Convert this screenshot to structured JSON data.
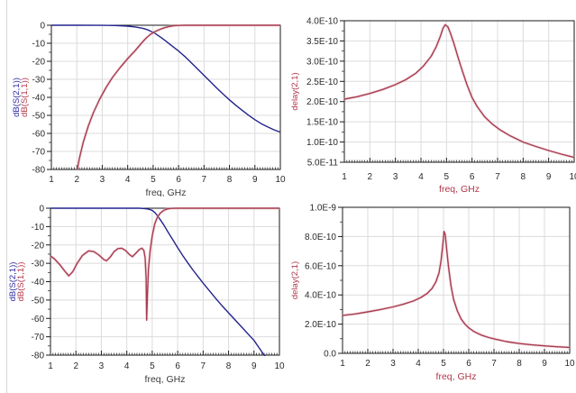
{
  "page": {
    "background": "#ffffff",
    "grid_color": "#dbdbdb",
    "axis_color": "#1a1a1a",
    "tick_text_color": "#2a2a2a"
  },
  "chart_data": [
    {
      "id": "sparams-butterworth-lowpass",
      "type": "line",
      "title": "",
      "xlabel": "freq, GHz",
      "xlabel_color": "#3a3a3a",
      "ylabel_lines": [
        {
          "text": "dB(S(2,1))",
          "color": "#2b2b9e",
          "slug": "ylabel-db-s21"
        },
        {
          "text": "dB(S(1,1))",
          "color": "#b23648",
          "slug": "ylabel-db-s11"
        }
      ],
      "xlim": [
        1,
        10
      ],
      "ylim": [
        -80,
        0
      ],
      "xticks": [
        1,
        2,
        3,
        4,
        5,
        6,
        7,
        8,
        9,
        10
      ],
      "xtick_labels": [
        "1",
        "2",
        "3",
        "4",
        "5",
        "6",
        "7",
        "8",
        "9",
        "10"
      ],
      "yticks": [
        0,
        -10,
        -20,
        -30,
        -40,
        -50,
        -60,
        -70,
        -80
      ],
      "ytick_labels": [
        "0",
        "-10",
        "-20",
        "-30",
        "-40",
        "-50",
        "-60",
        "-70",
        "-80"
      ],
      "x_minor_step": 0.1,
      "grid": true,
      "legend_position": "none",
      "series": [
        {
          "name": "dB(S(2,1))",
          "slug": "trace-db-s21",
          "color": "#23238e",
          "points": [
            [
              1,
              0
            ],
            [
              2,
              0
            ],
            [
              3,
              -0.05
            ],
            [
              3.5,
              -0.15
            ],
            [
              4,
              -0.5
            ],
            [
              4.3,
              -0.95
            ],
            [
              4.6,
              -1.7
            ],
            [
              4.8,
              -2.6
            ],
            [
              4.95,
              -3.6
            ],
            [
              5.05,
              -4.3
            ],
            [
              5.3,
              -6.7
            ],
            [
              5.5,
              -8.8
            ],
            [
              5.75,
              -11.6
            ],
            [
              6,
              -14.3
            ],
            [
              6.25,
              -17.4
            ],
            [
              6.5,
              -20.8
            ],
            [
              6.75,
              -24.3
            ],
            [
              7,
              -27.8
            ],
            [
              7.25,
              -31.3
            ],
            [
              7.5,
              -34.8
            ],
            [
              7.75,
              -38.2
            ],
            [
              8,
              -41.4
            ],
            [
              8.25,
              -44.4
            ],
            [
              8.5,
              -47.2
            ],
            [
              8.75,
              -49.9
            ],
            [
              9,
              -52.4
            ],
            [
              9.25,
              -54.6
            ],
            [
              9.5,
              -56.4
            ],
            [
              9.75,
              -58
            ],
            [
              10,
              -59.3
            ]
          ]
        },
        {
          "name": "dB(S(1,1))",
          "slug": "trace-db-s11",
          "color": "#a63c50",
          "halo": "#e9b7c0",
          "points": [
            [
              2.02,
              -80
            ],
            [
              2.1,
              -74
            ],
            [
              2.25,
              -65
            ],
            [
              2.45,
              -56
            ],
            [
              2.65,
              -48.5
            ],
            [
              2.9,
              -41
            ],
            [
              3.15,
              -34.5
            ],
            [
              3.4,
              -29
            ],
            [
              3.7,
              -23.5
            ],
            [
              4.0,
              -18.5
            ],
            [
              4.3,
              -14
            ],
            [
              4.6,
              -9
            ],
            [
              4.75,
              -6.8
            ],
            [
              4.9,
              -5
            ],
            [
              5.05,
              -3.7
            ],
            [
              5.2,
              -2.7
            ],
            [
              5.4,
              -1.6
            ],
            [
              5.6,
              -0.8
            ],
            [
              5.8,
              -0.3
            ],
            [
              6.0,
              -0.1
            ],
            [
              6.3,
              0
            ],
            [
              10,
              0
            ]
          ]
        }
      ]
    },
    {
      "id": "group-delay-butterworth",
      "type": "line",
      "title": "",
      "xlabel": "freq, GHz",
      "xlabel_color": "#b23648",
      "ylabel_lines": [
        {
          "text": "delay(2,1)",
          "color": "#b23648",
          "slug": "ylabel-delay21"
        }
      ],
      "xlim": [
        1,
        10
      ],
      "ylim": [
        5e-11,
        4e-10
      ],
      "xticks": [
        1,
        2,
        3,
        4,
        5,
        6,
        7,
        8,
        9,
        10
      ],
      "xtick_labels": [
        "1",
        "2",
        "3",
        "4",
        "5",
        "6",
        "7",
        "8",
        "9",
        "10"
      ],
      "yticks": [
        4e-10,
        3.5e-10,
        3e-10,
        2.5e-10,
        2e-10,
        1.5e-10,
        1e-10,
        5e-11
      ],
      "ytick_labels": [
        "4.0E-10",
        "3.5E-10",
        "3.0E-10",
        "2.5E-10",
        "2.0E-10",
        "1.5E-10",
        "1.0E-10",
        "5.0E-11"
      ],
      "x_minor_step": 0.1,
      "grid": true,
      "legend_position": "none",
      "series": [
        {
          "name": "delay(2,1)",
          "slug": "trace-delay21",
          "color": "#a63c50",
          "halo": "#e9b7c0",
          "points": [
            [
              1,
              2.06e-10
            ],
            [
              1.5,
              2.12e-10
            ],
            [
              2,
              2.2e-10
            ],
            [
              2.5,
              2.3e-10
            ],
            [
              3,
              2.42e-10
            ],
            [
              3.4,
              2.54e-10
            ],
            [
              3.8,
              2.7e-10
            ],
            [
              4.1,
              2.88e-10
            ],
            [
              4.4,
              3.12e-10
            ],
            [
              4.6,
              3.36e-10
            ],
            [
              4.75,
              3.6e-10
            ],
            [
              4.87,
              3.82e-10
            ],
            [
              4.95,
              3.9e-10
            ],
            [
              5.05,
              3.85e-10
            ],
            [
              5.15,
              3.7e-10
            ],
            [
              5.3,
              3.42e-10
            ],
            [
              5.45,
              3.1e-10
            ],
            [
              5.6,
              2.8e-10
            ],
            [
              5.8,
              2.42e-10
            ],
            [
              6.0,
              2.1e-10
            ],
            [
              6.2,
              1.88e-10
            ],
            [
              6.5,
              1.62e-10
            ],
            [
              6.8,
              1.44e-10
            ],
            [
              7.1,
              1.3e-10
            ],
            [
              7.5,
              1.15e-10
            ],
            [
              8.0,
              1e-10
            ],
            [
              8.5,
              8.9e-11
            ],
            [
              9.0,
              7.9e-11
            ],
            [
              9.5,
              7e-11
            ],
            [
              10,
              6.2e-11
            ]
          ]
        }
      ]
    },
    {
      "id": "sparams-elliptic-lowpass",
      "type": "line",
      "title": "",
      "xlabel": "freq, GHz",
      "xlabel_color": "#3a3a3a",
      "ylabel_lines": [
        {
          "text": "dB(S(2,1))",
          "color": "#2b2b9e",
          "slug": "ylabel-db-s21"
        },
        {
          "text": "dB(S(1,1))",
          "color": "#b23648",
          "slug": "ylabel-db-s11"
        }
      ],
      "xlim": [
        1,
        10
      ],
      "ylim": [
        -80,
        0
      ],
      "xticks": [
        1,
        2,
        3,
        4,
        5,
        6,
        7,
        8,
        9,
        10
      ],
      "xtick_labels": [
        "1",
        "2",
        "3",
        "4",
        "5",
        "6",
        "7",
        "8",
        "9",
        "10"
      ],
      "yticks": [
        0,
        -10,
        -20,
        -30,
        -40,
        -50,
        -60,
        -70,
        -80
      ],
      "ytick_labels": [
        "0",
        "-10",
        "-20",
        "-30",
        "-40",
        "-50",
        "-60",
        "-70",
        "-80"
      ],
      "x_minor_step": 0.1,
      "grid": true,
      "legend_position": "none",
      "series": [
        {
          "name": "dB(S(2,1))",
          "slug": "trace-db-s21",
          "color": "#23238e",
          "points": [
            [
              1,
              0
            ],
            [
              4.5,
              0
            ],
            [
              4.7,
              -0.2
            ],
            [
              4.85,
              -0.5
            ],
            [
              5.0,
              -1.2
            ],
            [
              5.1,
              -2.3
            ],
            [
              5.2,
              -4
            ],
            [
              5.3,
              -6
            ],
            [
              5.45,
              -9
            ],
            [
              5.6,
              -12.5
            ],
            [
              5.8,
              -17
            ],
            [
              6.0,
              -21.5
            ],
            [
              6.2,
              -25.8
            ],
            [
              6.4,
              -29.8
            ],
            [
              6.6,
              -33.6
            ],
            [
              6.8,
              -37.2
            ],
            [
              7.0,
              -40.8
            ],
            [
              7.25,
              -45
            ],
            [
              7.5,
              -49.2
            ],
            [
              7.75,
              -53.2
            ],
            [
              8.0,
              -57
            ],
            [
              8.5,
              -64.5
            ],
            [
              9.0,
              -72
            ],
            [
              9.3,
              -78
            ],
            [
              9.45,
              -81
            ]
          ]
        },
        {
          "name": "dB(S(1,1))",
          "slug": "trace-db-s11",
          "color": "#a63c50",
          "halo": "#e9b7c0",
          "points": [
            [
              1,
              -26
            ],
            [
              1.15,
              -27.5
            ],
            [
              1.35,
              -30.5
            ],
            [
              1.55,
              -34
            ],
            [
              1.72,
              -36.8
            ],
            [
              1.88,
              -34.5
            ],
            [
              2.05,
              -30
            ],
            [
              2.25,
              -25.8
            ],
            [
              2.5,
              -23.2
            ],
            [
              2.7,
              -23.6
            ],
            [
              2.9,
              -25.4
            ],
            [
              3.1,
              -28
            ],
            [
              3.2,
              -28.6
            ],
            [
              3.35,
              -26.6
            ],
            [
              3.5,
              -23.6
            ],
            [
              3.65,
              -22
            ],
            [
              3.8,
              -21.8
            ],
            [
              3.95,
              -23
            ],
            [
              4.1,
              -25.2
            ],
            [
              4.22,
              -26.4
            ],
            [
              4.35,
              -24.6
            ],
            [
              4.5,
              -22.4
            ],
            [
              4.6,
              -21.8
            ],
            [
              4.67,
              -23
            ],
            [
              4.72,
              -27
            ],
            [
              4.76,
              -38
            ],
            [
              4.78,
              -61
            ],
            [
              4.81,
              -48
            ],
            [
              4.85,
              -33
            ],
            [
              4.92,
              -23
            ],
            [
              5.0,
              -15
            ],
            [
              5.1,
              -8.5
            ],
            [
              5.2,
              -5
            ],
            [
              5.32,
              -2.6
            ],
            [
              5.45,
              -1.2
            ],
            [
              5.6,
              -0.4
            ],
            [
              5.75,
              -0.1
            ],
            [
              5.95,
              0
            ],
            [
              10,
              0
            ]
          ]
        }
      ]
    },
    {
      "id": "group-delay-elliptic",
      "type": "line",
      "title": "",
      "xlabel": "freq, GHz",
      "xlabel_color": "#b23648",
      "ylabel_lines": [
        {
          "text": "delay(2,1)",
          "color": "#b23648",
          "slug": "ylabel-delay21"
        }
      ],
      "xlim": [
        1,
        10
      ],
      "ylim": [
        0,
        1e-09
      ],
      "xticks": [
        1,
        2,
        3,
        4,
        5,
        6,
        7,
        8,
        9,
        10
      ],
      "xtick_labels": [
        "1",
        "2",
        "3",
        "4",
        "5",
        "6",
        "7",
        "8",
        "9",
        "10"
      ],
      "yticks": [
        1e-09,
        8e-10,
        6e-10,
        4e-10,
        2e-10,
        0
      ],
      "ytick_labels": [
        "1.0E-9",
        "8.0E-10",
        "6.0E-10",
        "4.0E-10",
        "2.0E-10",
        "0.0"
      ],
      "x_minor_step": 0.1,
      "grid": true,
      "legend_position": "none",
      "series": [
        {
          "name": "delay(2,1)",
          "slug": "trace-delay21",
          "color": "#a63c50",
          "halo": "#e9b7c0",
          "points": [
            [
              1,
              2.6e-10
            ],
            [
              1.5,
              2.7e-10
            ],
            [
              2,
              2.84e-10
            ],
            [
              2.5,
              3e-10
            ],
            [
              3,
              3.18e-10
            ],
            [
              3.4,
              3.36e-10
            ],
            [
              3.8,
              3.58e-10
            ],
            [
              4.1,
              3.82e-10
            ],
            [
              4.35,
              4.1e-10
            ],
            [
              4.55,
              4.45e-10
            ],
            [
              4.7,
              4.9e-10
            ],
            [
              4.82,
              5.5e-10
            ],
            [
              4.9,
              6.3e-10
            ],
            [
              4.97,
              7.4e-10
            ],
            [
              5.02,
              8.35e-10
            ],
            [
              5.07,
              8.1e-10
            ],
            [
              5.12,
              7.2e-10
            ],
            [
              5.2,
              5.9e-10
            ],
            [
              5.3,
              4.6e-10
            ],
            [
              5.4,
              3.7e-10
            ],
            [
              5.55,
              2.9e-10
            ],
            [
              5.7,
              2.35e-10
            ],
            [
              5.85,
              2e-10
            ],
            [
              6.0,
              1.75e-10
            ],
            [
              6.2,
              1.5e-10
            ],
            [
              6.5,
              1.25e-10
            ],
            [
              6.8,
              1.08e-10
            ],
            [
              7.1,
              9.5e-11
            ],
            [
              7.5,
              8e-11
            ],
            [
              8.0,
              6.7e-11
            ],
            [
              8.5,
              5.8e-11
            ],
            [
              9.0,
              5.1e-11
            ],
            [
              9.5,
              4.5e-11
            ],
            [
              10,
              4.1e-11
            ]
          ]
        }
      ]
    }
  ]
}
